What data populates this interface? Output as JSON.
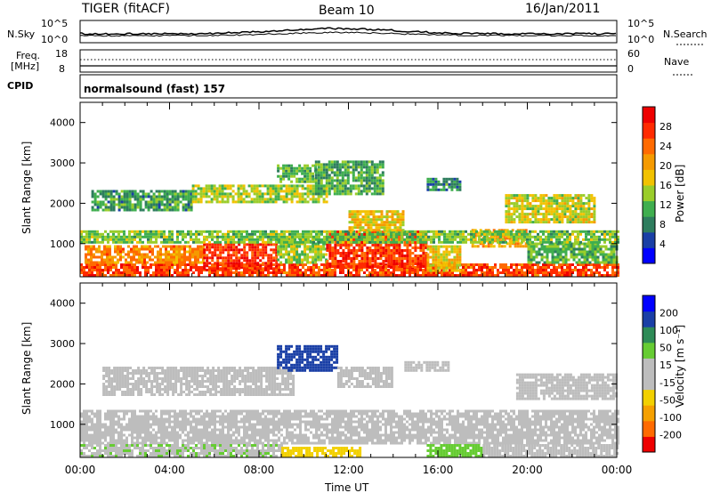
{
  "header": {
    "station": "TIGER (fitACF)",
    "beam": "Beam 10",
    "date": "16/Jan/2011"
  },
  "noise_panel": {
    "left_label": "N.Sky",
    "right_label": "N.Search",
    "right_label_style": "dotted",
    "left_ticks": [
      "10^5",
      "10^0"
    ],
    "right_ticks": [
      "10^5",
      "10^0"
    ]
  },
  "freq_panel": {
    "left_label_line1": "Freq.",
    "left_label_line2": "[MHz]",
    "right_label": "Nave",
    "right_label_style": "dotted",
    "left_ticks": [
      "18",
      "8"
    ],
    "right_ticks": [
      "60",
      "0"
    ]
  },
  "cpid_panel": {
    "label": "CPID",
    "mode": "normalsound (fast) 157"
  },
  "chart_data": [
    {
      "type": "heatmap",
      "panel": "power",
      "ylabel": "Slant Range [km]",
      "ylim": [
        180,
        4500
      ],
      "yticks": [
        "1000",
        "2000",
        "3000",
        "4000"
      ],
      "xlim_hours": [
        0,
        24
      ],
      "colorbar_label": "Power [dB]",
      "colorbar_ticks": [
        "4",
        "8",
        "12",
        "16",
        "20",
        "24",
        "28"
      ],
      "colorscale": [
        "#0000ff",
        "#1a3fa6",
        "#2e7d5e",
        "#3fae4f",
        "#9acd2a",
        "#f2c200",
        "#f59a00",
        "#ff6a00",
        "#ff2a00",
        "#ee0000"
      ],
      "bands": [
        {
          "t0": 0.0,
          "t1": 24.0,
          "r0": 180,
          "r1": 500,
          "level": 26
        },
        {
          "t0": 0.2,
          "t1": 5.5,
          "r0": 500,
          "r1": 900,
          "level": 22
        },
        {
          "t0": 5.5,
          "t1": 8.8,
          "r0": 350,
          "r1": 1000,
          "level": 28
        },
        {
          "t0": 8.8,
          "t1": 11.0,
          "r0": 500,
          "r1": 1100,
          "level": 14
        },
        {
          "t0": 11.0,
          "t1": 15.5,
          "r0": 400,
          "r1": 1300,
          "level": 27
        },
        {
          "t0": 15.5,
          "t1": 17.0,
          "r0": 300,
          "r1": 900,
          "level": 18
        },
        {
          "t0": 17.5,
          "t1": 20.0,
          "r0": 900,
          "r1": 1300,
          "level": 20
        },
        {
          "t0": 20.0,
          "t1": 24.0,
          "r0": 500,
          "r1": 1000,
          "level": 12
        },
        {
          "t0": 0.0,
          "t1": 24.0,
          "r0": 1000,
          "r1": 1300,
          "level": 13
        },
        {
          "t0": 0.5,
          "t1": 5.0,
          "r0": 1800,
          "r1": 2300,
          "level": 10
        },
        {
          "t0": 5.0,
          "t1": 11.0,
          "r0": 2000,
          "r1": 2400,
          "level": 15
        },
        {
          "t0": 8.8,
          "t1": 10.5,
          "r0": 2500,
          "r1": 2900,
          "level": 12
        },
        {
          "t0": 10.5,
          "t1": 13.5,
          "r0": 2200,
          "r1": 3000,
          "level": 11
        },
        {
          "t0": 15.5,
          "t1": 17.0,
          "r0": 2300,
          "r1": 2600,
          "level": 9
        },
        {
          "t0": 19.0,
          "t1": 23.0,
          "r0": 1500,
          "r1": 2200,
          "level": 16
        },
        {
          "t0": 12.0,
          "t1": 14.5,
          "r0": 1300,
          "r1": 1800,
          "level": 18
        }
      ]
    },
    {
      "type": "heatmap",
      "panel": "velocity",
      "ylabel": "Slant Range [km]",
      "ylim": [
        180,
        4500
      ],
      "yticks": [
        "1000",
        "2000",
        "3000",
        "4000"
      ],
      "xlim_hours": [
        0,
        24
      ],
      "xticks": [
        "00:00",
        "04:00",
        "08:00",
        "12:00",
        "16:00",
        "20:00",
        "00:00"
      ],
      "xlabel": "Time UT",
      "colorbar_label": "Velocity [m s⁻¹]",
      "colorbar_ticks": [
        "-200",
        "-100",
        "-50",
        "-15",
        "15",
        "50",
        "100",
        "200"
      ],
      "colorscale": [
        "#ee0000",
        "#ff6a00",
        "#f5a000",
        "#f2d000",
        "#bdbdbd",
        "#bdbdbd",
        "#66cc33",
        "#2e8b57",
        "#1a3fa6",
        "#0000ff"
      ],
      "bands": [
        {
          "t0": 0.0,
          "t1": 24.0,
          "r0": 500,
          "r1": 1300,
          "level": 0
        },
        {
          "t0": 0.0,
          "t1": 9.0,
          "r0": 180,
          "r1": 500,
          "level": 10
        },
        {
          "t0": 9.0,
          "t1": 12.5,
          "r0": 180,
          "r1": 400,
          "level": -40
        },
        {
          "t0": 15.5,
          "t1": 18.0,
          "r0": 180,
          "r1": 500,
          "level": 40
        },
        {
          "t0": 18.0,
          "t1": 24.0,
          "r0": 180,
          "r1": 450,
          "level": 5
        },
        {
          "t0": 1.0,
          "t1": 9.5,
          "r0": 1700,
          "r1": 2400,
          "level": 0
        },
        {
          "t0": 8.8,
          "t1": 11.5,
          "r0": 2300,
          "r1": 2900,
          "level": 150
        },
        {
          "t0": 11.5,
          "t1": 14.0,
          "r0": 1900,
          "r1": 2400,
          "level": 0
        },
        {
          "t0": 14.5,
          "t1": 16.5,
          "r0": 2300,
          "r1": 2500,
          "level": 0
        },
        {
          "t0": 19.5,
          "t1": 24.0,
          "r0": 1600,
          "r1": 2200,
          "level": 0
        }
      ]
    }
  ]
}
